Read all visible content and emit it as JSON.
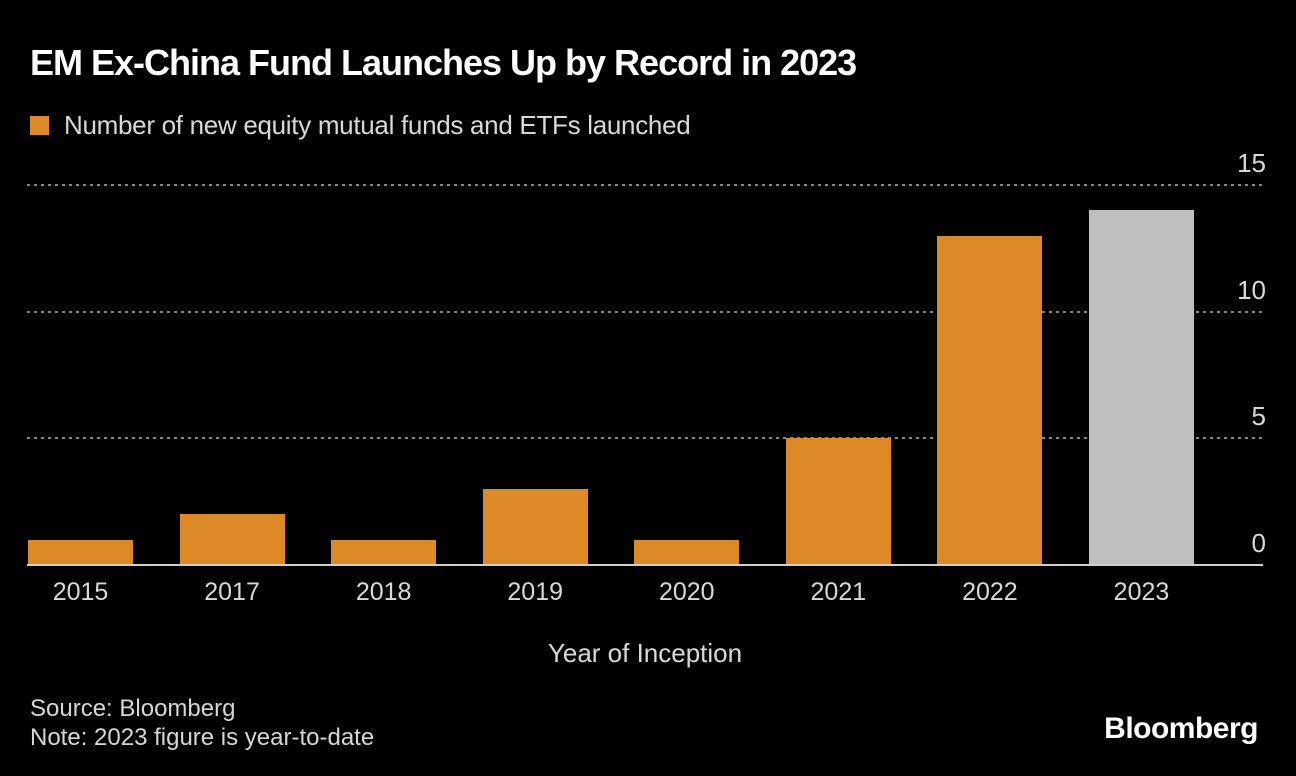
{
  "title": "EM Ex-China Fund Launches Up by Record in 2023",
  "legend": {
    "label": "Number of new equity mutual funds and ETFs launched",
    "swatch_color": "#de8927"
  },
  "chart_data": {
    "type": "bar",
    "title": "EM Ex-China Fund Launches Up by Record in 2023",
    "categories": [
      "2015",
      "2017",
      "2018",
      "2019",
      "2020",
      "2021",
      "2022",
      "2023"
    ],
    "values": [
      1,
      2,
      1,
      3,
      1,
      5,
      13,
      14
    ],
    "bar_colors": [
      "#de8927",
      "#de8927",
      "#de8927",
      "#de8927",
      "#de8927",
      "#de8927",
      "#de8927",
      "#bfbfbf"
    ],
    "xlabel": "Year of Inception",
    "ylabel": "",
    "ylim": [
      0,
      15
    ],
    "y_ticks": [
      0,
      5,
      10,
      15
    ],
    "grid": "horizontal dotted lines at 5, 10, 15; solid baseline at 0",
    "legend_position": "top-left",
    "legend_entries": [
      "Number of new equity mutual funds and ETFs launched"
    ],
    "note": "2023 bar rendered gray (year-to-date); all other bars orange"
  },
  "footer": {
    "source": "Source: Bloomberg",
    "note": "Note: 2023 figure is year-to-date",
    "brand": "Bloomberg"
  },
  "colors": {
    "background": "#000000",
    "bar_orange": "#de8927",
    "bar_gray": "#bfbfbf",
    "title_text": "#ffffff",
    "text": "#d9d9d9",
    "gridline": "#858585",
    "baseline": "#cfcfcf"
  }
}
